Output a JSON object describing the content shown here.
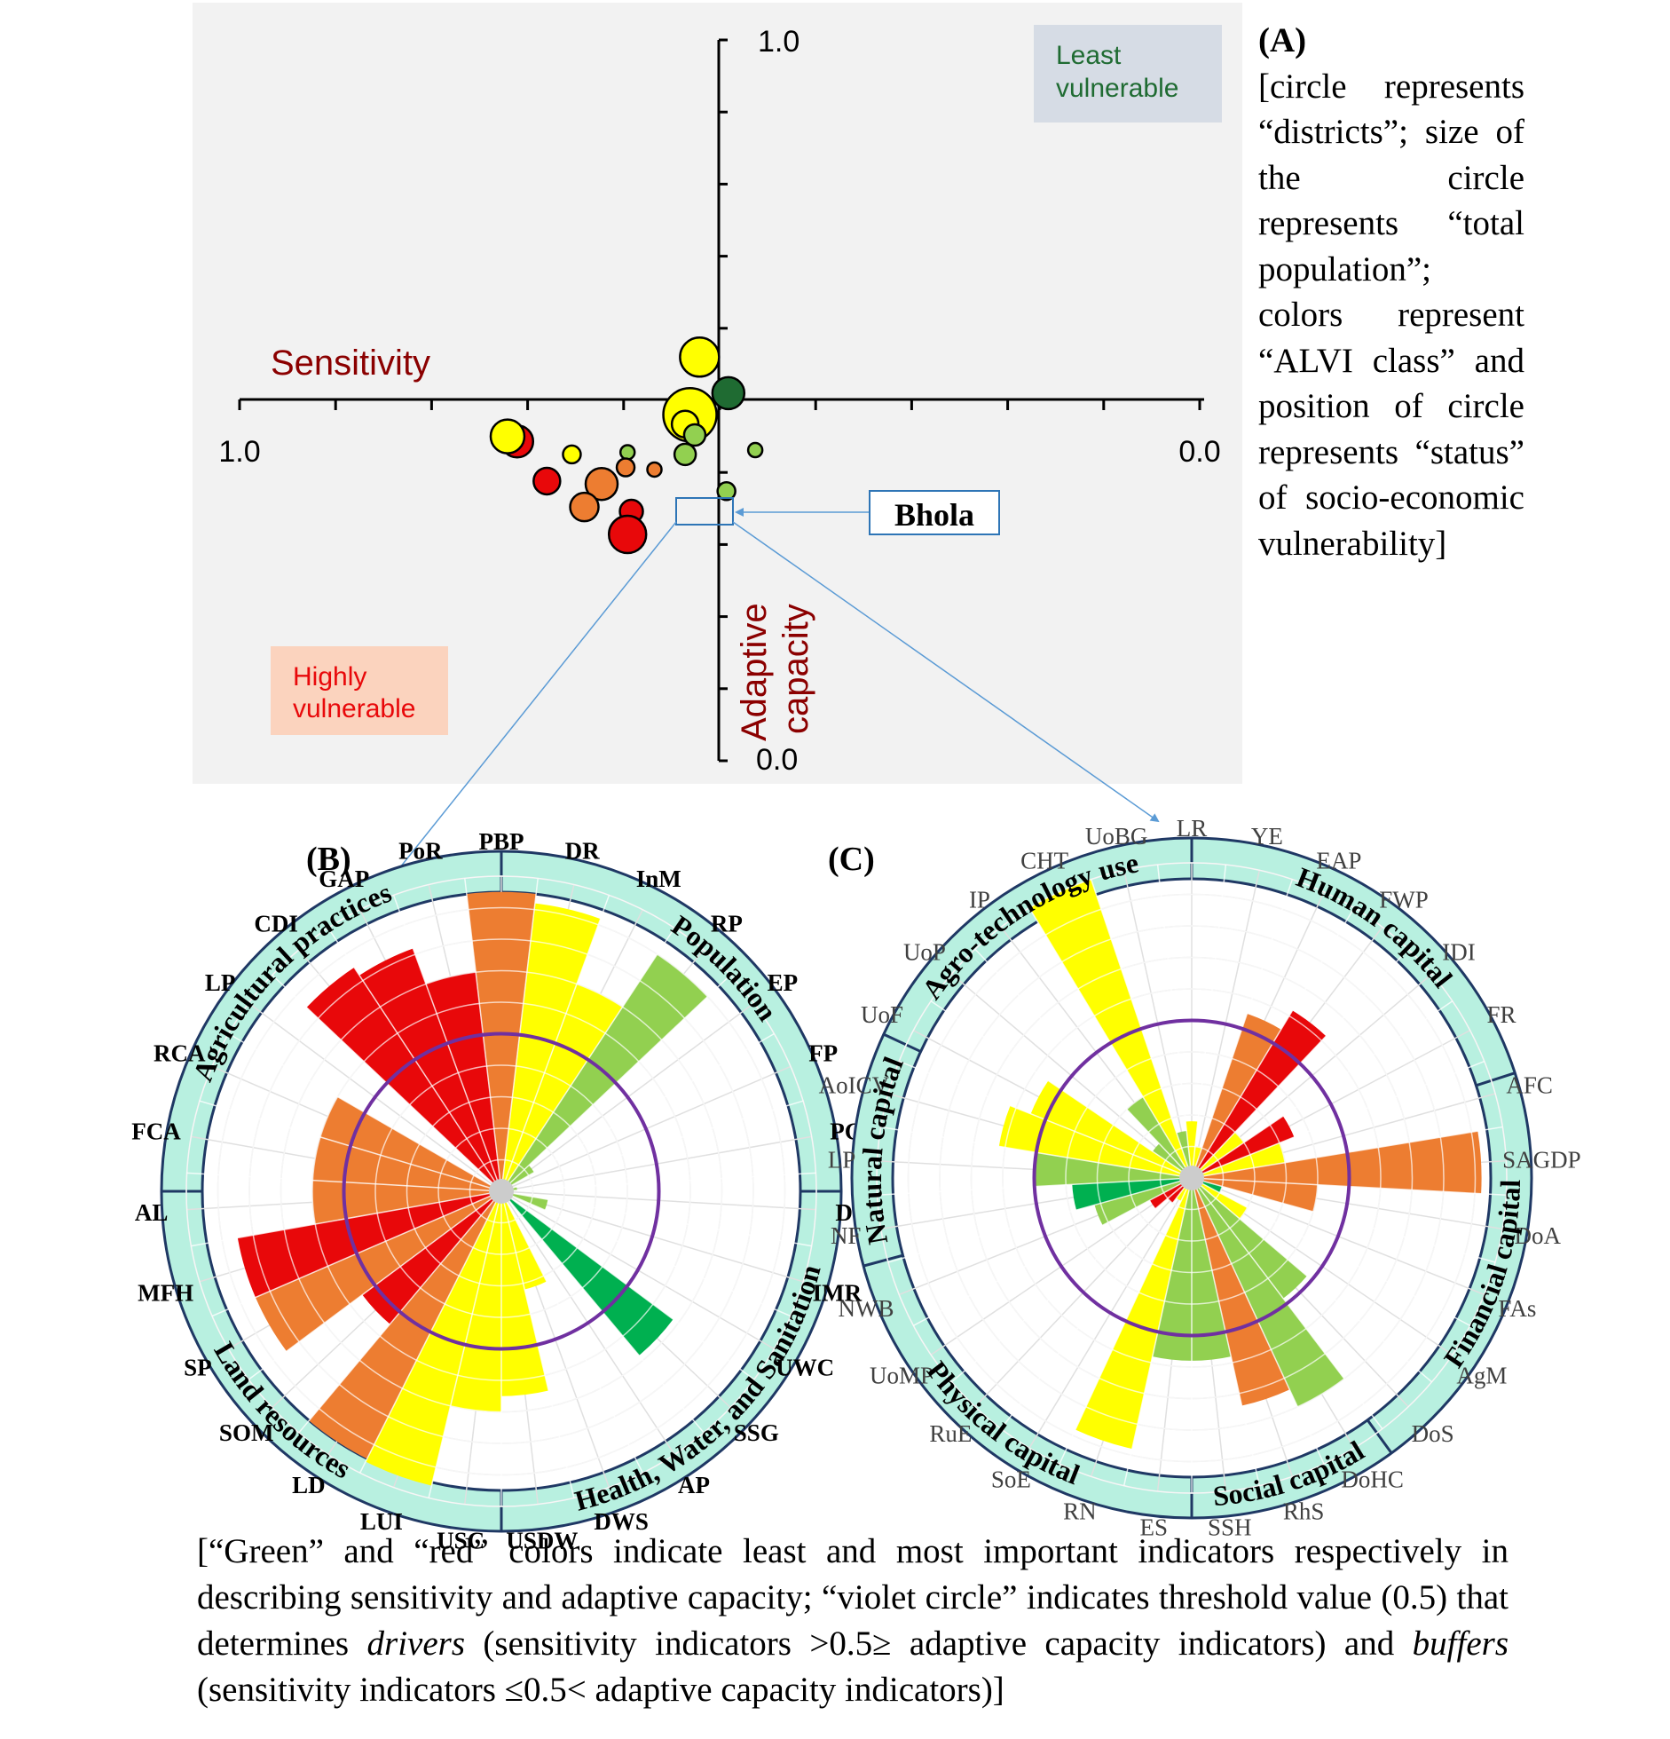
{
  "panel_a": {
    "panel_label": "(A)",
    "note": "[circle represents “districts”; size of the circle represents “total population”; colors represent “ALVI class” and position of circle represents “status” of socio-economic vulnerability]",
    "x_axis_label": "Sensitivity",
    "y_axis_label_line1": "Adaptive",
    "y_axis_label_line2": "capacity",
    "x_tick_left": "1.0",
    "x_tick_right": "0.0",
    "y_tick_top": "1.0",
    "y_tick_bottom": "0.0",
    "quadrant_least_line1": "Least",
    "quadrant_least_line2": "vulnerable",
    "quadrant_high_line1": "Highly",
    "quadrant_high_line2": "vulnerable",
    "callout_label": "Bhola"
  },
  "panel_b": {
    "panel_label": "(B)"
  },
  "panel_c": {
    "panel_label": "(C)"
  },
  "caption": {
    "part1": "[“Green” and “red” colors indicate least and most important indicators respectively in describing sensitivity and adaptive capacity; “violet circle” indicates threshold value (0.5) that determines ",
    "drivers": "drivers",
    "part2": " (sensitivity indicators >0.5≥ adaptive capacity indicators) and ",
    "buffers": "buffers",
    "part3": " (sensitivity indicators ≤0.5< adaptive capacity indicators)]"
  },
  "colors": {
    "red": "#e8080a",
    "orange": "#ed7d31",
    "yellow": "#ffff00",
    "lightgreen": "#92d050",
    "darkgreen": "#00b050",
    "deepgreen": "#1f6b32",
    "violet": "#7030a0",
    "ring": "#b8f0e0",
    "ring_stroke": "#1f3864"
  },
  "chart_data": [
    {
      "type": "scatter",
      "title": "",
      "xlabel": "Sensitivity",
      "ylabel": "Adaptive capacity",
      "xlim": [
        1.0,
        0.0
      ],
      "ylim": [
        0.0,
        1.0
      ],
      "x_ticks": 10,
      "y_ticks": 10,
      "grid": false,
      "points": [
        {
          "x": 0.02,
          "y": 0.56,
          "size": 22,
          "color": "yellow"
        },
        {
          "x": -0.01,
          "y": 0.51,
          "size": 18,
          "color": "deepgreen"
        },
        {
          "x": 0.03,
          "y": 0.48,
          "size": 30,
          "color": "yellow"
        },
        {
          "x": 0.035,
          "y": 0.467,
          "size": 15,
          "color": "yellow"
        },
        {
          "x": 0.025,
          "y": 0.452,
          "size": 12,
          "color": "lightgreen"
        },
        {
          "x": 0.21,
          "y": 0.443,
          "size": 18,
          "color": "red"
        },
        {
          "x": 0.22,
          "y": 0.45,
          "size": 19,
          "color": "yellow"
        },
        {
          "x": 0.153,
          "y": 0.425,
          "size": 10,
          "color": "yellow"
        },
        {
          "x": 0.035,
          "y": 0.425,
          "size": 12,
          "color": "lightgreen"
        },
        {
          "x": -0.038,
          "y": 0.431,
          "size": 8,
          "color": "lightgreen"
        },
        {
          "x": 0.095,
          "y": 0.428,
          "size": 8,
          "color": "lightgreen"
        },
        {
          "x": 0.097,
          "y": 0.407,
          "size": 10,
          "color": "orange"
        },
        {
          "x": 0.067,
          "y": 0.404,
          "size": 8,
          "color": "orange"
        },
        {
          "x": 0.179,
          "y": 0.388,
          "size": 15,
          "color": "red"
        },
        {
          "x": 0.122,
          "y": 0.384,
          "size": 18,
          "color": "orange"
        },
        {
          "x": -0.008,
          "y": 0.374,
          "size": 10,
          "color": "lightgreen"
        },
        {
          "x": 0.14,
          "y": 0.352,
          "size": 16,
          "color": "orange"
        },
        {
          "x": 0.091,
          "y": 0.346,
          "size": 13,
          "color": "red"
        },
        {
          "x": 0.095,
          "y": 0.314,
          "size": 21,
          "color": "red"
        }
      ]
    },
    {
      "type": "bar",
      "subtype": "polar",
      "panel": "B",
      "threshold": 0.5,
      "categories": [
        "PBP",
        "DR",
        "InM",
        "RP",
        "EP",
        "FP",
        "PG",
        "DP",
        "IMR",
        "UWC",
        "SSG",
        "AP",
        "DWS",
        "USDW",
        "USC",
        "LUI",
        "LD",
        "SOM",
        "SP",
        "MFH",
        "AL",
        "FCA",
        "RCA",
        "LP",
        "CDI",
        "GAP",
        "PoR"
      ],
      "values": [
        0.95,
        0.92,
        0.7,
        0.9,
        0.12,
        0.0,
        0.05,
        0.0,
        0.15,
        0.0,
        0.68,
        0.0,
        0.32,
        0.65,
        0.7,
        0.96,
        0.95,
        0.55,
        0.85,
        0.85,
        0.6,
        0.6,
        0.6,
        0.0,
        0.85,
        0.82,
        0.7
      ],
      "colors": [
        "orange",
        "yellow",
        "yellow",
        "lightgreen",
        "lightgreen",
        "lightgreen",
        "lightgreen",
        "lightgreen",
        "lightgreen",
        "lightgreen",
        "darkgreen",
        "lightgreen",
        "yellow",
        "yellow",
        "yellow",
        "yellow",
        "orange",
        "red",
        "orange",
        "red",
        "orange",
        "orange",
        "orange",
        "orange",
        "red",
        "red",
        "red"
      ],
      "segments": [
        {
          "label": "Agricultural practices",
          "start": 270,
          "end": 360
        },
        {
          "label": "Population",
          "start": 0,
          "end": 90
        },
        {
          "label": "Health, Water, and Sanitation",
          "start": 90,
          "end": 180
        },
        {
          "label": "Land resources",
          "start": 180,
          "end": 270
        }
      ]
    },
    {
      "type": "bar",
      "subtype": "polar",
      "panel": "C",
      "threshold": 0.5,
      "categories": [
        "LR",
        "YE",
        "EAP",
        "FWP",
        "IDI",
        "FR",
        "AFC",
        "SAGDP",
        "DoA",
        "FAs",
        "AgM",
        "DoS",
        "DoHC",
        "RhS",
        "SSH",
        "ES",
        "RN",
        "SoE",
        "RuE",
        "UoMP",
        "NWB",
        "NF",
        "LP",
        "AoICV",
        "UoF",
        "UoP",
        "IP",
        "CHT",
        "UoBG"
      ],
      "values": [
        0.18,
        0.1,
        0.55,
        0.62,
        0.2,
        0.35,
        0.3,
        0.92,
        0.4,
        0.1,
        0.2,
        0.48,
        0.8,
        0.74,
        0.58,
        0.58,
        0.88,
        0.08,
        0.1,
        0.15,
        0.32,
        0.38,
        0.5,
        0.62,
        0.55,
        0.15,
        0.3,
        1.0,
        0.15
      ],
      "colors": [
        "yellow",
        "yellow",
        "orange",
        "red",
        "yellow",
        "red",
        "yellow",
        "orange",
        "orange",
        "darkgreen",
        "yellow",
        "lightgreen",
        "lightgreen",
        "orange",
        "lightgreen",
        "lightgreen",
        "yellow",
        "yellow",
        "red",
        "red",
        "lightgreen",
        "darkgreen",
        "lightgreen",
        "yellow",
        "yellow",
        "lightgreen",
        "lightgreen",
        "yellow",
        "lightgreen"
      ],
      "segments": [
        {
          "label": "Human capital",
          "start": 0,
          "end": 72
        },
        {
          "label": "Financial capital",
          "start": 72,
          "end": 144
        },
        {
          "label": "Social capital",
          "start": 144,
          "end": 180
        },
        {
          "label": "Physical capital",
          "start": 180,
          "end": 255
        },
        {
          "label": "Natural capital",
          "start": 255,
          "end": 295
        },
        {
          "label": "Agro-technology use",
          "start": 295,
          "end": 360
        }
      ]
    }
  ]
}
